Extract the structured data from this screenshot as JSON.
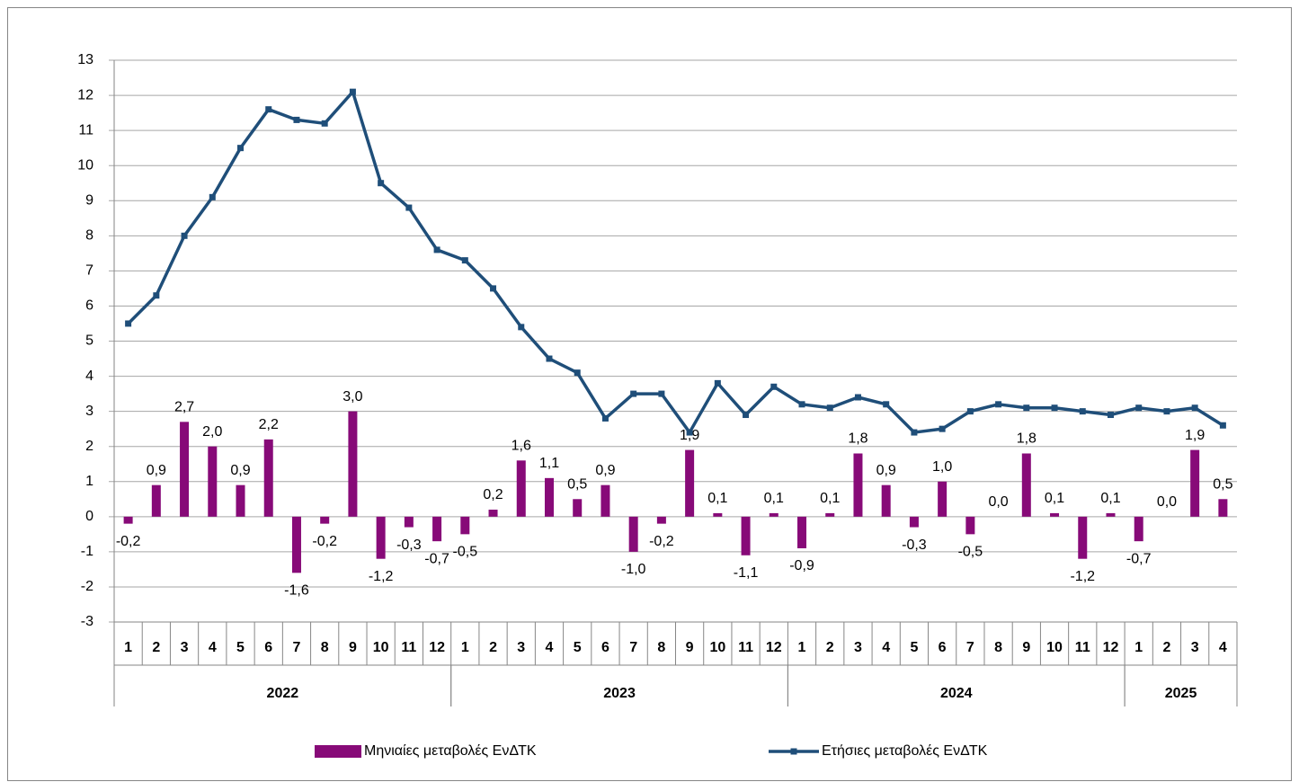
{
  "chart_data": {
    "type": "bar-line",
    "categories": [
      "1",
      "2",
      "3",
      "4",
      "5",
      "6",
      "7",
      "8",
      "9",
      "10",
      "11",
      "12",
      "1",
      "2",
      "3",
      "4",
      "5",
      "6",
      "7",
      "8",
      "9",
      "10",
      "11",
      "12",
      "1",
      "2",
      "3",
      "4",
      "5",
      "6",
      "7",
      "8",
      "9",
      "10",
      "11",
      "12",
      "1",
      "2",
      "3",
      "4"
    ],
    "groups": [
      {
        "name": "2022",
        "span": 12
      },
      {
        "name": "2023",
        "span": 12
      },
      {
        "name": "2024",
        "span": 12
      },
      {
        "name": "2025",
        "span": 4
      }
    ],
    "series": [
      {
        "name": "Μηνιαίες μεταβολές ΕνΔΤΚ",
        "type": "bar",
        "color": "#870a78",
        "values": [
          -0.2,
          0.9,
          2.7,
          2.0,
          0.9,
          2.2,
          -1.6,
          -0.2,
          3.0,
          -1.2,
          -0.3,
          -0.7,
          -0.5,
          0.2,
          1.6,
          1.1,
          0.5,
          0.9,
          -1.0,
          -0.2,
          1.9,
          0.1,
          -1.1,
          0.1,
          -0.9,
          0.1,
          1.8,
          0.9,
          -0.3,
          1.0,
          -0.5,
          0.0,
          1.8,
          0.1,
          -1.2,
          0.1,
          -0.7,
          0.0,
          1.9,
          0.5
        ],
        "value_labels": [
          "-0,2",
          "0,9",
          "2,7",
          "2,0",
          "0,9",
          "2,2",
          "-1,6",
          "-0,2",
          "3,0",
          "-1,2",
          "-0,3",
          "-0,7",
          "-0,5",
          "0,2",
          "1,6",
          "1,1",
          "0,5",
          "0,9",
          "-1,0",
          "-0,2",
          "1,9",
          "0,1",
          "-1,1",
          "0,1",
          "-0,9",
          "0,1",
          "1,8",
          "0,9",
          "-0,3",
          "1,0",
          "-0,5",
          "0,0",
          "1,8",
          "0,1",
          "-1,2",
          "0,1",
          "-0,7",
          "0,0",
          "1,9",
          "0,5"
        ]
      },
      {
        "name": "Ετήσιες μεταβολές ΕνΔΤΚ",
        "type": "line",
        "color": "#1f4e79",
        "values": [
          5.5,
          6.3,
          8.0,
          9.1,
          10.5,
          11.6,
          11.3,
          11.2,
          12.1,
          9.5,
          8.8,
          7.6,
          7.3,
          6.5,
          5.4,
          4.5,
          4.1,
          2.8,
          3.5,
          3.5,
          2.4,
          3.8,
          2.9,
          3.7,
          3.2,
          3.1,
          3.4,
          3.2,
          2.4,
          2.5,
          3.0,
          3.2,
          3.1,
          3.1,
          3.0,
          2.9,
          3.1,
          3.0,
          3.1,
          2.6
        ]
      }
    ],
    "ylim": [
      -3,
      13
    ],
    "yticks": [
      -3,
      -2,
      -1,
      0,
      1,
      2,
      3,
      4,
      5,
      6,
      7,
      8,
      9,
      10,
      11,
      12,
      13
    ],
    "grid": true
  }
}
